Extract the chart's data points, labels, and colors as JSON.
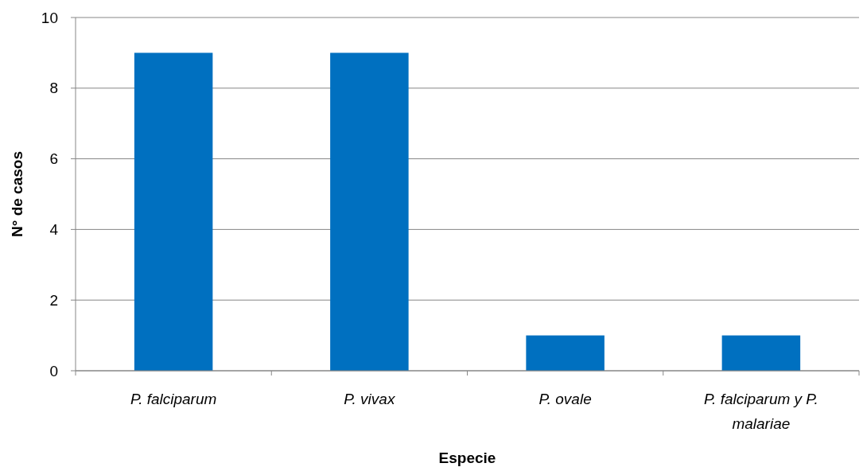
{
  "chart_data": {
    "type": "bar",
    "xlabel": "Especie",
    "ylabel": "N° de casos",
    "categories": [
      "P. falciparum",
      "P. vivax",
      "P. ovale",
      "P. falciparum y P. malariae"
    ],
    "values": [
      9,
      9,
      1,
      1
    ],
    "color": "#0070c0",
    "ylim": [
      0,
      10
    ],
    "yticks": [
      0,
      2,
      4,
      6,
      8,
      10
    ],
    "grid": "y"
  }
}
